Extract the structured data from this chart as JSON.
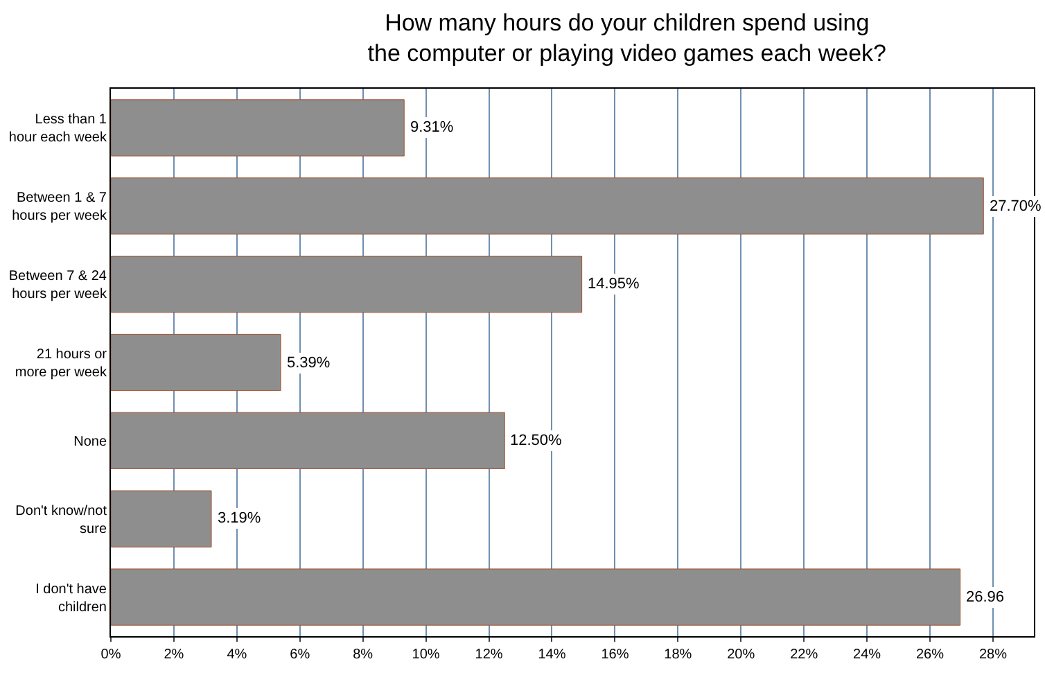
{
  "chart_data": {
    "type": "bar",
    "orientation": "horizontal",
    "title": "How many hours do your children spend using the computer or playing video games each week?",
    "categories": [
      "Less than 1 hour each week",
      "Between 1 & 7 hours per week",
      "Between 7 & 24 hours per week",
      "21 hours or more per week",
      "None",
      "Don't know/not sure",
      "I don't have children"
    ],
    "values": [
      9.31,
      27.7,
      14.95,
      5.39,
      12.5,
      3.19,
      26.96
    ],
    "value_labels": [
      "9.31%",
      "27.70%",
      "14.95%",
      "5.39%",
      "12.50%",
      "3.19%",
      "26.96"
    ],
    "color": "#8e8e8e",
    "xlim": [
      0,
      29.3
    ],
    "xticks": [
      {
        "value": 0,
        "label": "0%"
      },
      {
        "value": 2,
        "label": "2%"
      },
      {
        "value": 4,
        "label": "4%"
      },
      {
        "value": 6,
        "label": "6%"
      },
      {
        "value": 8,
        "label": "8%"
      },
      {
        "value": 10,
        "label": "10%"
      },
      {
        "value": 12,
        "label": "12%"
      },
      {
        "value": 14,
        "label": "14%"
      },
      {
        "value": 16,
        "label": "16%"
      },
      {
        "value": 18,
        "label": "18%"
      },
      {
        "value": 20,
        "label": "20%"
      },
      {
        "value": 22,
        "label": "22%"
      },
      {
        "value": 24,
        "label": "24%"
      },
      {
        "value": 26,
        "label": "26%"
      },
      {
        "value": 28,
        "label": "28%"
      }
    ],
    "grid": "x"
  }
}
